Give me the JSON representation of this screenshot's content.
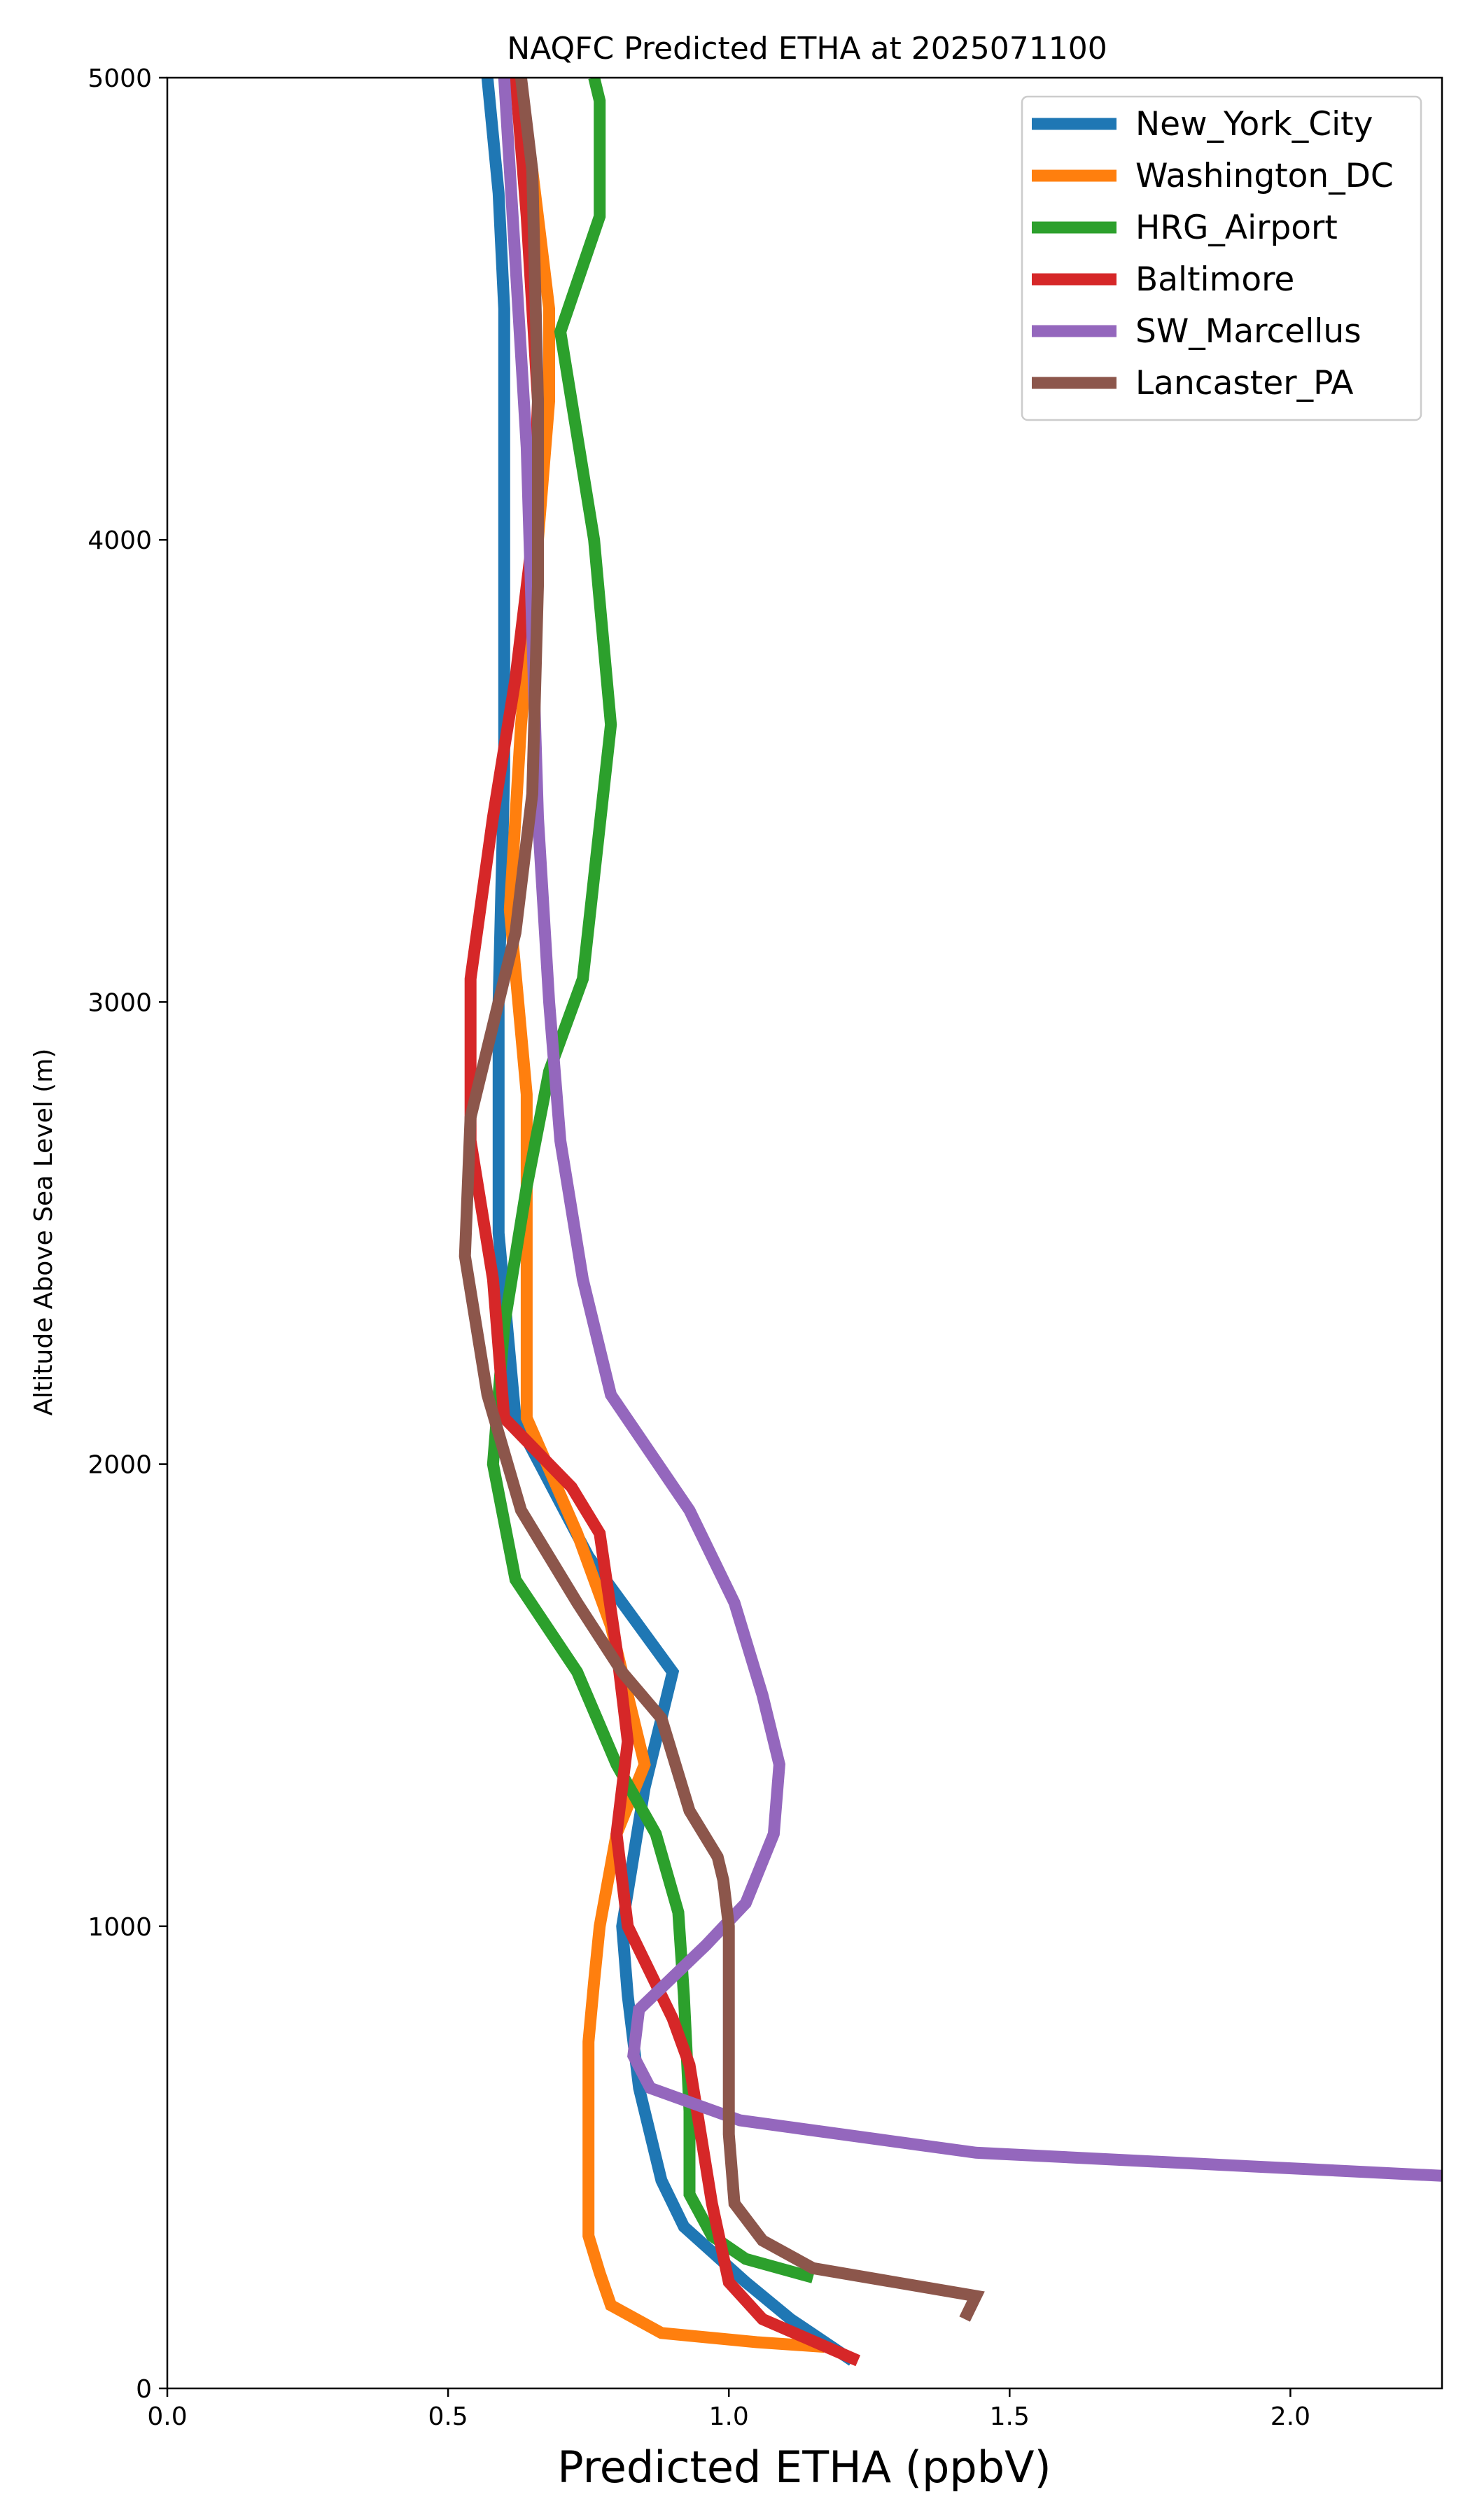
{
  "chart_data": {
    "type": "line",
    "title": "NAQFC Predicted ETHA at 2025071100",
    "xlabel": "Predicted ETHA (ppbV)",
    "ylabel": "Altitude Above Sea Level (m)",
    "xlim": [
      0,
      2.27
    ],
    "ylim": [
      0,
      5000
    ],
    "xticks": [
      "0.0",
      "0.5",
      "1.0",
      "1.5",
      "2.0"
    ],
    "xtick_values": [
      0,
      0.5,
      1.0,
      1.5,
      2.0
    ],
    "yticks": [
      "0",
      "1000",
      "2000",
      "3000",
      "4000",
      "5000"
    ],
    "ytick_values": [
      0,
      1000,
      2000,
      3000,
      4000,
      5000
    ],
    "grid": false,
    "legend_position": "top-right",
    "series": [
      {
        "name": "New_York_City",
        "color": "#1f77b4",
        "x": [
          1.22,
          1.11,
          1.03,
          0.92,
          0.88,
          0.84,
          0.82,
          0.81,
          0.85,
          0.9,
          0.75,
          0.62,
          0.59,
          0.59,
          0.6,
          0.6,
          0.6,
          0.59,
          0.57
        ],
        "y": [
          60,
          150,
          230,
          350,
          450,
          650,
          850,
          1000,
          1300,
          1550,
          1800,
          2100,
          2500,
          3000,
          3500,
          4000,
          4500,
          4750,
          5000
        ]
      },
      {
        "name": "Washington_DC",
        "color": "#ff7f0e",
        "x": [
          1.17,
          1.05,
          0.88,
          0.79,
          0.77,
          0.75,
          0.75,
          0.75,
          0.75,
          0.76,
          0.77,
          0.8,
          0.85,
          0.79,
          0.73,
          0.64,
          0.64,
          0.64,
          0.61,
          0.63,
          0.66,
          0.68,
          0.68,
          0.65,
          0.62
        ],
        "y": [
          90,
          100,
          120,
          180,
          250,
          330,
          420,
          600,
          750,
          880,
          1000,
          1200,
          1350,
          1650,
          1850,
          2100,
          2400,
          2800,
          3200,
          3600,
          4000,
          4300,
          4500,
          4800,
          5000
        ]
      },
      {
        "name": "HRG_Airport",
        "color": "#2ca02c",
        "x": [
          1.15,
          1.03,
          0.97,
          0.93,
          0.93,
          0.92,
          0.91,
          0.87,
          0.8,
          0.73,
          0.62,
          0.58,
          0.6,
          0.64,
          0.68,
          0.74,
          0.79,
          0.76,
          0.7,
          0.77,
          0.77,
          0.76
        ],
        "y": [
          240,
          280,
          330,
          420,
          600,
          850,
          1030,
          1200,
          1350,
          1550,
          1750,
          2000,
          2300,
          2600,
          2850,
          3050,
          3600,
          4000,
          4450,
          4700,
          4950,
          5000
        ]
      },
      {
        "name": "Baltimore",
        "color": "#d62728",
        "x": [
          1.23,
          1.06,
          1.0,
          0.97,
          0.95,
          0.93,
          0.9,
          0.82,
          0.8,
          0.82,
          0.8,
          0.77,
          0.72,
          0.6,
          0.58,
          0.54,
          0.54,
          0.58,
          0.62,
          0.65,
          0.66,
          0.64,
          0.62
        ],
        "y": [
          60,
          150,
          230,
          400,
          550,
          700,
          800,
          1000,
          1200,
          1400,
          1600,
          1850,
          1950,
          2100,
          2400,
          2700,
          3050,
          3400,
          3700,
          4000,
          4300,
          4700,
          5000
        ]
      },
      {
        "name": "SW_Marcellus",
        "color": "#9467bd",
        "x": [
          2.27,
          1.44,
          1.02,
          0.86,
          0.83,
          0.84,
          0.96,
          1.03,
          1.08,
          1.09,
          1.06,
          1.01,
          0.93,
          0.79,
          0.74,
          0.7,
          0.68,
          0.66,
          0.65,
          0.64,
          0.62,
          0.6
        ],
        "y": [
          460,
          510,
          580,
          650,
          720,
          820,
          960,
          1050,
          1200,
          1350,
          1500,
          1700,
          1900,
          2150,
          2400,
          2700,
          3000,
          3400,
          3800,
          4200,
          4600,
          5000
        ]
      },
      {
        "name": "Lancaster_PA",
        "color": "#8c564b",
        "x": [
          1.42,
          1.44,
          1.15,
          1.06,
          1.01,
          1.0,
          1.0,
          1.0,
          0.99,
          0.98,
          0.93,
          0.88,
          0.81,
          0.73,
          0.63,
          0.57,
          0.53,
          0.54,
          0.59,
          0.62,
          0.65,
          0.66,
          0.66,
          0.65,
          0.63
        ],
        "y": [
          150,
          200,
          260,
          320,
          400,
          550,
          800,
          1000,
          1100,
          1150,
          1250,
          1450,
          1550,
          1700,
          1900,
          2150,
          2450,
          2750,
          3000,
          3150,
          3450,
          3900,
          4300,
          4800,
          5000
        ]
      }
    ]
  }
}
